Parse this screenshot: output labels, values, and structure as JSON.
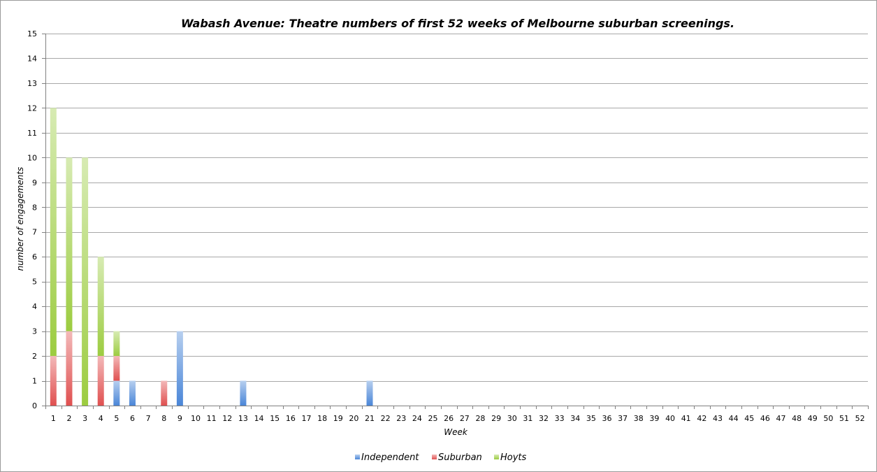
{
  "chart_data": {
    "type": "bar",
    "stacked": true,
    "title": "Wabash Avenue: Theatre numbers of first 52 weeks of Melbourne suburban screenings.",
    "xlabel": "Week",
    "ylabel": "number of engagements",
    "ylim": [
      0,
      15
    ],
    "yticks": [
      0,
      1,
      2,
      3,
      4,
      5,
      6,
      7,
      8,
      9,
      10,
      11,
      12,
      13,
      14,
      15
    ],
    "grid": true,
    "legend_position": "bottom",
    "categories": [
      "1",
      "2",
      "3",
      "4",
      "5",
      "6",
      "7",
      "8",
      "9",
      "10",
      "11",
      "12",
      "13",
      "14",
      "15",
      "16",
      "17",
      "18",
      "19",
      "20",
      "21",
      "22",
      "23",
      "24",
      "25",
      "26",
      "27",
      "28",
      "29",
      "30",
      "31",
      "32",
      "33",
      "34",
      "35",
      "36",
      "37",
      "38",
      "39",
      "40",
      "41",
      "42",
      "43",
      "44",
      "45",
      "46",
      "47",
      "48",
      "49",
      "50",
      "51",
      "52"
    ],
    "series": [
      {
        "name": "Independent",
        "color": "#4a86d8",
        "values": [
          0,
          0,
          0,
          0,
          1,
          1,
          0,
          0,
          3,
          0,
          0,
          0,
          1,
          0,
          0,
          0,
          0,
          0,
          0,
          0,
          1,
          0,
          0,
          0,
          0,
          0,
          0,
          0,
          0,
          0,
          0,
          0,
          0,
          0,
          0,
          0,
          0,
          0,
          0,
          0,
          0,
          0,
          0,
          0,
          0,
          0,
          0,
          0,
          0,
          0,
          0,
          0
        ]
      },
      {
        "name": "Suburban",
        "color": "#e05050",
        "values": [
          2,
          3,
          0,
          2,
          1,
          0,
          0,
          1,
          0,
          0,
          0,
          0,
          0,
          0,
          0,
          0,
          0,
          0,
          0,
          0,
          0,
          0,
          0,
          0,
          0,
          0,
          0,
          0,
          0,
          0,
          0,
          0,
          0,
          0,
          0,
          0,
          0,
          0,
          0,
          0,
          0,
          0,
          0,
          0,
          0,
          0,
          0,
          0,
          0,
          0,
          0,
          0
        ]
      },
      {
        "name": "Hoyts",
        "color": "#9ccc40",
        "values": [
          10,
          7,
          10,
          4,
          1,
          0,
          0,
          0,
          0,
          0,
          0,
          0,
          0,
          0,
          0,
          0,
          0,
          0,
          0,
          0,
          0,
          0,
          0,
          0,
          0,
          0,
          0,
          0,
          0,
          0,
          0,
          0,
          0,
          0,
          0,
          0,
          0,
          0,
          0,
          0,
          0,
          0,
          0,
          0,
          0,
          0,
          0,
          0,
          0,
          0,
          0,
          0
        ]
      }
    ]
  }
}
